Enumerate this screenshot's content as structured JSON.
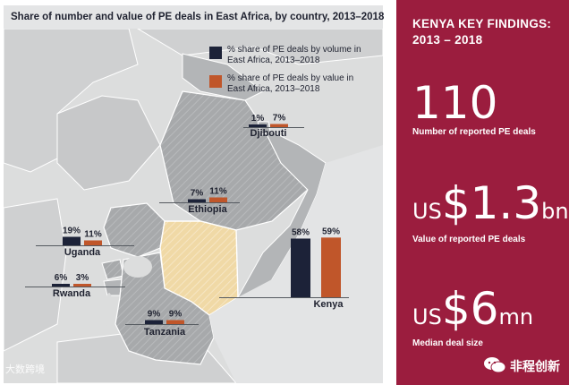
{
  "title": "Share of number and value of PE deals in East Africa, by country, 2013–2018",
  "legend": [
    {
      "label": "% share of PE deals by volume in East Africa, 2013–2018",
      "color": "#1c2238"
    },
    {
      "label": "% share of PE deals by value in East Africa, 2013–2018",
      "color": "#c0562a"
    }
  ],
  "chart_data": {
    "type": "bar",
    "title": "Share of number and value of PE deals in East Africa, by country, 2013–2018",
    "categories": [
      "Djibouti",
      "Ethiopia",
      "Uganda",
      "Rwanda",
      "Tanzania",
      "Kenya"
    ],
    "series": [
      {
        "name": "% share of PE deals by volume in East Africa, 2013–2018",
        "color": "#1c2238",
        "values": [
          1,
          7,
          19,
          6,
          9,
          58
        ]
      },
      {
        "name": "% share of PE deals by value in East Africa, 2013–2018",
        "color": "#c0562a",
        "values": [
          7,
          11,
          11,
          3,
          9,
          59
        ]
      }
    ],
    "value_labels": {
      "volume": [
        "1%",
        "7%",
        "19%",
        "6%",
        "9%",
        "58%"
      ],
      "value": [
        "7%",
        "11%",
        "11%",
        "3%",
        "9%",
        "59%"
      ]
    },
    "unit": "%"
  },
  "panel": {
    "heading_line1": "KENYA KEY FINDINGS:",
    "heading_line2": "2013 – 2018",
    "stats": [
      {
        "prefix": "",
        "number": "110",
        "suffix": "",
        "label": "Number of reported PE deals"
      },
      {
        "prefix": "US",
        "number": "$1.3",
        "suffix": "bn",
        "label": "Value of reported PE deals"
      },
      {
        "prefix": "US",
        "number": "$6",
        "suffix": "mn",
        "label": "Median deal size"
      }
    ],
    "background_color": "#9b1d3e"
  },
  "watermark": "大数跨境",
  "wechat": {
    "icon": "wechat-icon",
    "label": "非程创新"
  },
  "colors": {
    "map_background": "#dcdddd",
    "highlight_country": "#f0d9a6",
    "country_fill": "#a4a6a8"
  }
}
